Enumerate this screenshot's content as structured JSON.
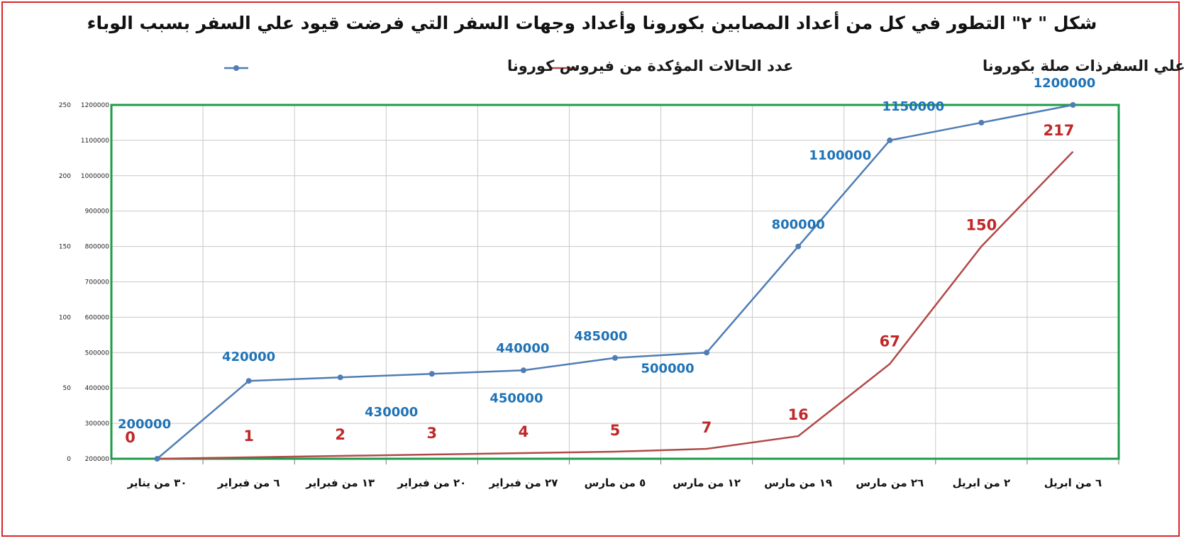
{
  "title": "شكل \" ٢\" التطور في كل من أعداد المصابين بكورونا  وأعداد وجهات السفر التي فرضت قيود علي السفر بسبب الوباء",
  "colors": {
    "cases_line": "#4f7db5",
    "destinations_line": "#b04a48",
    "cases_label": "#1f73b7",
    "destinations_label": "#c0282a",
    "plot_border": "#1e9b4a",
    "frame_border": "#d8262b",
    "grid": "#c8c8c8"
  },
  "chart_data": {
    "type": "line",
    "categories": [
      "٣٠ من يناير",
      "٦ من فبراير",
      "١٣ من فبراير",
      "٢٠ من فبراير",
      "٢٧ من فبراير",
      "٥ من مارس",
      "١٢ من مارس",
      "١٩ من مارس",
      "٢٦ من مارس",
      "٢ من ابريل",
      "٦ من ابريل"
    ],
    "series": [
      {
        "name": "عدد الحالات المؤكدة من فيروس كورونا",
        "axis": "secondary",
        "values": [
          200000,
          420000,
          430000,
          440000,
          450000,
          485000,
          500000,
          800000,
          1100000,
          1150000,
          1200000
        ],
        "labels": [
          "200000",
          "420000",
          "430000",
          "440000",
          "450000",
          "485000",
          "500000",
          "800000",
          "1100000",
          "1150000",
          "1200000"
        ]
      },
      {
        "name": "عدد وجهات السفر التي بها قيود علي السفرذات صلة بكورونا",
        "axis": "primary",
        "values": [
          0,
          1,
          2,
          3,
          4,
          5,
          7,
          16,
          67,
          150,
          217
        ],
        "labels": [
          "0",
          "1",
          "2",
          "3",
          "4",
          "5",
          "7",
          "16",
          "67",
          "150",
          "217"
        ]
      }
    ],
    "y_primary": {
      "ylim": [
        0,
        250
      ],
      "ticks": [
        "250",
        "200",
        "150",
        "100",
        "50",
        "0"
      ]
    },
    "y_secondary": {
      "ylim": [
        200000,
        1200000
      ],
      "ticks": [
        "1200000",
        "1100000",
        "1000000",
        "900000",
        "800000",
        "700000",
        "600000",
        "500000",
        "400000",
        "300000",
        "200000"
      ]
    },
    "grid": true,
    "legend": "top"
  }
}
